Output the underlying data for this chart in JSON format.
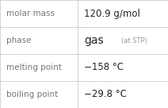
{
  "rows": [
    {
      "label": "molar mass",
      "value": "120.9 g/mol",
      "special": null
    },
    {
      "label": "phase",
      "value": "gas",
      "special": "(at STP)"
    },
    {
      "label": "melting point",
      "value": "−158 °C",
      "special": null
    },
    {
      "label": "boiling point",
      "value": "−29.8 °C",
      "special": null
    }
  ],
  "label_color": "#777777",
  "value_color": "#222222",
  "special_color": "#999999",
  "bg_color": "#ffffff",
  "divider_color": "#cccccc",
  "label_fontsize": 7.5,
  "value_fontsize": 8.5,
  "gas_fontsize": 10.0,
  "special_fontsize": 6.0,
  "col_split": 0.46
}
